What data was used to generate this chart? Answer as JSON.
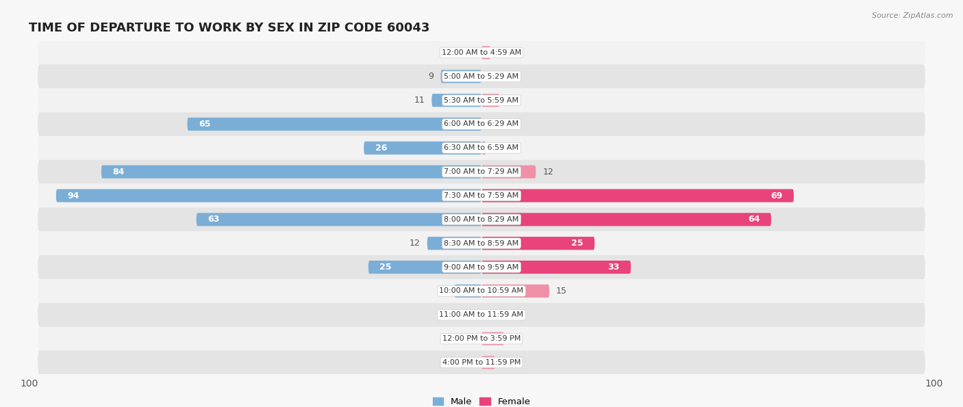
{
  "title": "TIME OF DEPARTURE TO WORK BY SEX IN ZIP CODE 60043",
  "source": "Source: ZipAtlas.com",
  "categories": [
    "12:00 AM to 4:59 AM",
    "5:00 AM to 5:29 AM",
    "5:30 AM to 5:59 AM",
    "6:00 AM to 6:29 AM",
    "6:30 AM to 6:59 AM",
    "7:00 AM to 7:29 AM",
    "7:30 AM to 7:59 AM",
    "8:00 AM to 8:29 AM",
    "8:30 AM to 8:59 AM",
    "9:00 AM to 9:59 AM",
    "10:00 AM to 10:59 AM",
    "11:00 AM to 11:59 AM",
    "12:00 PM to 3:59 PM",
    "4:00 PM to 11:59 PM"
  ],
  "male_values": [
    0,
    9,
    11,
    65,
    26,
    84,
    94,
    63,
    12,
    25,
    6,
    0,
    0,
    0
  ],
  "female_values": [
    2,
    0,
    4,
    0,
    1,
    12,
    69,
    64,
    25,
    33,
    15,
    0,
    5,
    3
  ],
  "male_color": "#7aaed6",
  "male_color_dark": "#5a8fc0",
  "female_color": "#f090a8",
  "female_color_bright": "#e8437a",
  "male_label": "Male",
  "female_label": "Female",
  "xlim": 100,
  "bar_height": 0.55,
  "row_bg_light": "#f2f2f2",
  "row_bg_dark": "#e4e4e4",
  "fig_bg": "#f7f7f7",
  "title_fontsize": 13,
  "tick_fontsize": 10,
  "value_fontsize": 9,
  "cat_fontsize": 8,
  "label_threshold": 18
}
